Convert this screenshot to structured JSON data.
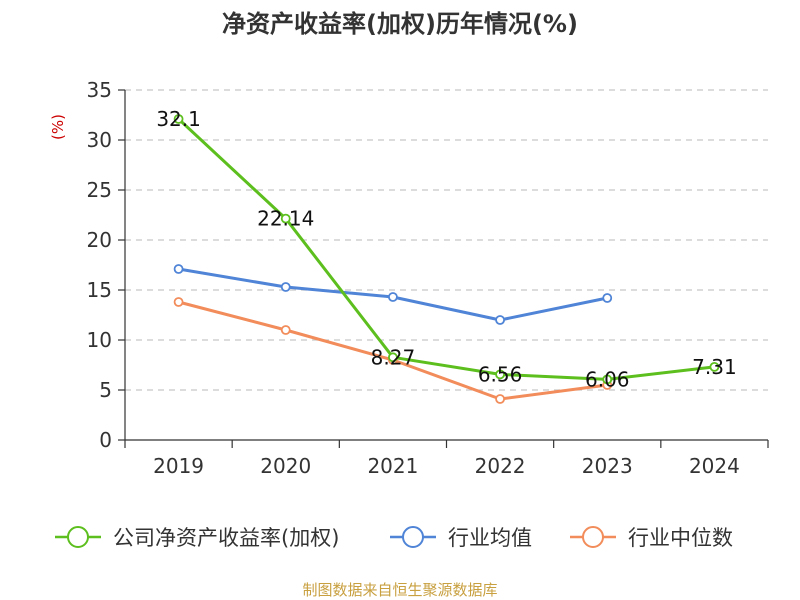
{
  "chart_data": {
    "type": "line",
    "title": "净资产收益率(加权)历年情况(%)",
    "ylabel": "(%)",
    "xlabel": "",
    "categories": [
      "2019",
      "2020",
      "2021",
      "2022",
      "2023",
      "2024"
    ],
    "ylim": [
      0,
      35
    ],
    "yticks": [
      0,
      5,
      10,
      15,
      20,
      25,
      30,
      35
    ],
    "grid": true,
    "legend_position": "bottom",
    "series": [
      {
        "name": "公司净资产收益率(加权)",
        "color": "#5cbf1e",
        "values": [
          32.1,
          22.14,
          8.27,
          6.56,
          6.06,
          7.31
        ],
        "labels": [
          "32.1",
          "22.14",
          "8.27",
          "6.56",
          "6.06",
          "7.31"
        ]
      },
      {
        "name": "行业均值",
        "color": "#4f84d6",
        "values": [
          17.1,
          15.3,
          14.3,
          12.0,
          14.2,
          null
        ]
      },
      {
        "name": "行业中位数",
        "color": "#f28c5a",
        "values": [
          13.8,
          11.0,
          8.0,
          4.1,
          5.5,
          null
        ]
      }
    ]
  },
  "source": "制图数据来自恒生聚源数据库"
}
